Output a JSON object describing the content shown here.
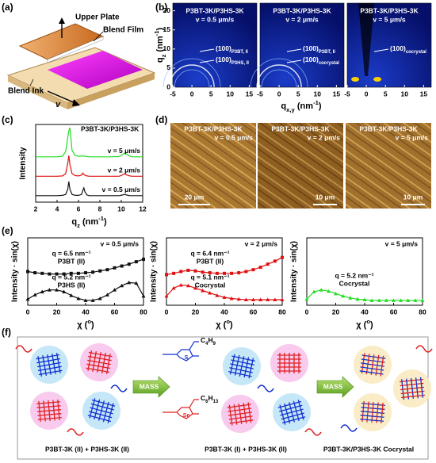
{
  "panel_labels": [
    "(a)",
    "(b)",
    "(c)",
    "(d)",
    "(e)",
    "(f)"
  ],
  "a": {
    "upper_plate": "Upper Plate",
    "blend_film": "Blend Film",
    "blend_ink": "Blend Ink",
    "v": "v"
  },
  "b": {
    "xlim": [
      -5,
      17
    ],
    "ylim": [
      0,
      22
    ],
    "xticks": [
      -5,
      0,
      5,
      10,
      15
    ],
    "yticks": [
      20,
      15,
      10,
      5,
      0
    ],
    "x_label": [
      "q",
      "x,y",
      " (nm",
      "-1",
      ")"
    ],
    "y_label": [
      "q",
      "z",
      " (nm",
      "-1",
      ")"
    ],
    "panels": [
      {
        "title": "P3BT-3K/P3HS-3K",
        "v": "v = 0.5 μm/s",
        "peaks": [
          [
            "(100)",
            "P3BT, II"
          ],
          [
            "(100)",
            "P3HS, II"
          ]
        ]
      },
      {
        "title": "P3BT-3K/P3HS-3K",
        "v": "v = 2 μm/s",
        "peaks": [
          [
            "(100)",
            "P3BT, II"
          ],
          [
            "(100)",
            "cocrystal"
          ]
        ]
      },
      {
        "title": "P3BT-3K/P3HS-3K",
        "v": "v = 5 μm/s",
        "peaks": [
          [
            "(100)",
            "cocrystal"
          ]
        ]
      }
    ]
  },
  "d": {
    "panels": [
      {
        "title": "P3BT-3K/P3HS-3K",
        "v": "v = 0.5 μm/s",
        "scale": "20 μm"
      },
      {
        "title": "P3BT-3K/P3HS-3K",
        "v": "v = 2 μm/s",
        "scale": "10 μm"
      },
      {
        "title": "P3BT-3K/P3HS-3K",
        "v": "v = 5 μm/s",
        "scale": "10 μm"
      }
    ]
  },
  "f": {
    "mass": [
      "MASS",
      "MASS"
    ],
    "side_chains": [
      [
        "C",
        "4",
        "H",
        "9"
      ],
      [
        "C",
        "6",
        "H",
        "13"
      ]
    ],
    "atoms": [
      "S",
      "Se"
    ],
    "captions": [
      "P3BT-3K (II) + P3HS-3K (II)",
      "P3BT-3K (I) + P3HS-3K (II)",
      "P3BT-3K/P3HS-3K Cocrystal"
    ]
  },
  "chart_data": [
    {
      "type": "line",
      "title": "P3BT-3K/P3HS-3K",
      "x_label": [
        "q",
        "z",
        " (nm",
        "-1",
        ")"
      ],
      "y_label": "Intensity",
      "x": [
        2,
        3,
        4,
        4.5,
        4.8,
        5,
        5.1,
        5.2,
        5.4,
        5.7,
        6,
        6.3,
        6.4,
        6.5,
        6.6,
        6.8,
        7,
        8,
        9,
        9.8,
        10.1,
        10.3,
        10.5,
        10.8,
        11,
        12
      ],
      "xlim": [
        2,
        12
      ],
      "xticks": [
        2,
        4,
        6,
        8,
        10,
        12
      ],
      "ylim": [
        0,
        120
      ],
      "series": [
        {
          "name": "v = 5 μm/s",
          "color": "#22dd22",
          "values": [
            70,
            70,
            70,
            71,
            78,
            100,
            110,
            115,
            80,
            72,
            71,
            71,
            71.5,
            71,
            71,
            70.5,
            70,
            70,
            70,
            70.5,
            73,
            76,
            74,
            71,
            70,
            70
          ]
        },
        {
          "name": "v = 2 μm/s",
          "color": "#e01010",
          "values": [
            40,
            40,
            40,
            40.5,
            44,
            60,
            72,
            58,
            44,
            41,
            40.5,
            42,
            45,
            43,
            41.5,
            40.5,
            40,
            40,
            40,
            40,
            42,
            44,
            42,
            40.5,
            40,
            40
          ]
        },
        {
          "name": "v = 0.5 μm/s",
          "color": "#111111",
          "values": [
            10,
            10,
            10,
            10.5,
            12,
            20,
            32,
            20,
            12,
            10.5,
            10.5,
            12,
            18,
            22,
            16,
            11,
            10,
            10,
            10,
            10,
            11,
            12,
            11,
            10,
            10,
            10
          ]
        }
      ]
    },
    {
      "type": "line",
      "x_label": [
        "χ (",
        "o",
        ")"
      ],
      "y_label": "Intensity · sin(χ)",
      "annotations": [
        "v = 0.5 μm/s",
        "q = 6.5 nm⁻¹",
        "P3BT (II)",
        "q = 5.2 nm⁻¹",
        "P3HS (II)"
      ],
      "x": [
        0,
        5,
        10,
        15,
        20,
        25,
        30,
        35,
        40,
        45,
        50,
        55,
        60,
        65,
        70,
        75,
        80
      ],
      "xlim": [
        0,
        80
      ],
      "xticks": [
        0,
        20,
        40,
        60,
        80
      ],
      "ylim": [
        0,
        110
      ],
      "series": [
        {
          "color": "#111111",
          "marker": "square",
          "values": [
            55,
            53,
            52,
            51,
            51,
            51,
            52,
            52,
            53,
            54,
            56,
            58,
            61,
            64,
            67,
            71,
            75
          ]
        },
        {
          "color": "#111111",
          "marker": "triangle",
          "values": [
            10,
            17,
            22,
            25,
            25,
            22,
            16,
            11,
            8,
            8,
            11,
            17,
            25,
            32,
            37,
            36,
            15
          ]
        }
      ]
    },
    {
      "type": "line",
      "x_label": [
        "χ (",
        "o",
        ")"
      ],
      "y_label": "Intensity · sin(χ)",
      "annotations": [
        "v = 2 μm/s",
        "q = 6.4 nm⁻¹",
        "P3BT (II)",
        "q = 5.1 nm⁻¹",
        "Cocrystal"
      ],
      "x": [
        0,
        5,
        10,
        15,
        20,
        25,
        30,
        35,
        40,
        45,
        50,
        55,
        60,
        65,
        70,
        75,
        80
      ],
      "xlim": [
        0,
        80
      ],
      "xticks": [
        0,
        20,
        40,
        60,
        80
      ],
      "ylim": [
        0,
        110
      ],
      "series": [
        {
          "color": "#e01010",
          "marker": "square",
          "values": [
            50,
            52,
            55,
            57,
            56,
            54,
            53,
            52,
            52,
            52,
            53,
            55,
            58,
            62,
            67,
            72,
            78
          ]
        },
        {
          "color": "#e01010",
          "marker": "triangle",
          "values": [
            15,
            28,
            33,
            32,
            28,
            24,
            20,
            16,
            13,
            11,
            10,
            9,
            9,
            9,
            9,
            9,
            9
          ]
        }
      ]
    },
    {
      "type": "line",
      "x_label": [
        "χ (",
        "o",
        ")"
      ],
      "y_label": "Intensity · sin(χ)",
      "annotations": [
        "v = 5 μm/s",
        "q = 5.2 nm⁻¹",
        "Cocrystal"
      ],
      "x": [
        0,
        5,
        10,
        15,
        20,
        25,
        30,
        35,
        40,
        45,
        50,
        55,
        60,
        65,
        70,
        75,
        80
      ],
      "xlim": [
        0,
        80
      ],
      "xticks": [
        0,
        20,
        40,
        60,
        80
      ],
      "ylim": [
        0,
        110
      ],
      "series": [
        {
          "color": "#22dd22",
          "marker": "triangle",
          "values": [
            10,
            22,
            25,
            23,
            19,
            15,
            12,
            10,
            9,
            8,
            8,
            8,
            8,
            8,
            8,
            8,
            8
          ]
        }
      ]
    }
  ]
}
